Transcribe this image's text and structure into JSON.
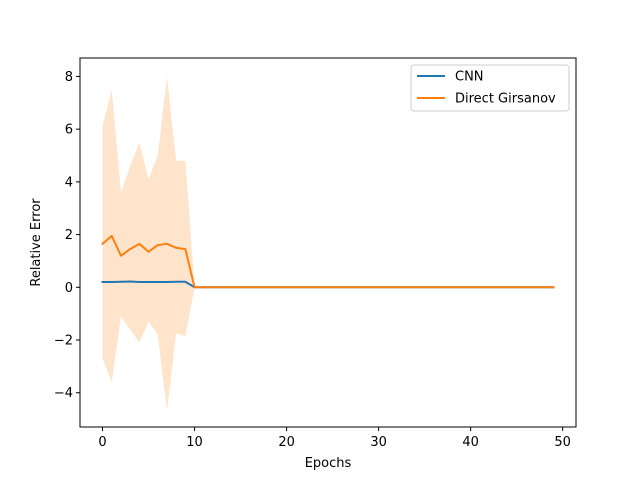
{
  "chart_data": {
    "type": "line",
    "title": "",
    "xlabel": "Epochs",
    "ylabel": "Relative Error",
    "xlim": [
      -2.45,
      51.45
    ],
    "ylim": [
      -5.3,
      8.7
    ],
    "xticks": [
      0,
      10,
      20,
      30,
      40,
      50
    ],
    "yticks": [
      -4,
      -2,
      0,
      2,
      4,
      6,
      8
    ],
    "grid": false,
    "legend_position": "upper right",
    "series": [
      {
        "name": "CNN",
        "color": "#1f77b4",
        "x": [
          0,
          1,
          2,
          3,
          4,
          5,
          6,
          7,
          8,
          9,
          10,
          11,
          12,
          13,
          14,
          15,
          16,
          17,
          18,
          19,
          20,
          21,
          22,
          23,
          24,
          25,
          26,
          27,
          28,
          29,
          30,
          31,
          32,
          33,
          34,
          35,
          36,
          37,
          38,
          39,
          40,
          41,
          42,
          43,
          44,
          45,
          46,
          47,
          48,
          49
        ],
        "y": [
          0.2,
          0.2,
          0.21,
          0.22,
          0.2,
          0.2,
          0.2,
          0.2,
          0.21,
          0.21,
          0,
          0,
          0,
          0,
          0,
          0,
          0,
          0,
          0,
          0,
          0,
          0,
          0,
          0,
          0,
          0,
          0,
          0,
          0,
          0,
          0,
          0,
          0,
          0,
          0,
          0,
          0,
          0,
          0,
          0,
          0,
          0,
          0,
          0,
          0,
          0,
          0,
          0,
          0,
          0
        ]
      },
      {
        "name": "Direct Girsanov",
        "color": "#ff7f0e",
        "x": [
          0,
          1,
          2,
          3,
          4,
          5,
          6,
          7,
          8,
          9,
          10,
          11,
          12,
          13,
          14,
          15,
          16,
          17,
          18,
          19,
          20,
          21,
          22,
          23,
          24,
          25,
          26,
          27,
          28,
          29,
          30,
          31,
          32,
          33,
          34,
          35,
          36,
          37,
          38,
          39,
          40,
          41,
          42,
          43,
          44,
          45,
          46,
          47,
          48,
          49
        ],
        "y": [
          1.65,
          1.95,
          1.2,
          1.45,
          1.65,
          1.35,
          1.6,
          1.65,
          1.5,
          1.45,
          0,
          0,
          0,
          0,
          0,
          0,
          0,
          0,
          0,
          0,
          0,
          0,
          0,
          0,
          0,
          0,
          0,
          0,
          0,
          0,
          0,
          0,
          0,
          0,
          0,
          0,
          0,
          0,
          0,
          0,
          0,
          0,
          0,
          0,
          0,
          0,
          0,
          0,
          0,
          0
        ],
        "band_upper": [
          6.1,
          7.5,
          3.6,
          4.6,
          5.5,
          4.1,
          5.0,
          8.0,
          4.8,
          4.8,
          0,
          0,
          0,
          0,
          0,
          0,
          0,
          0,
          0,
          0,
          0,
          0,
          0,
          0,
          0,
          0,
          0,
          0,
          0,
          0,
          0,
          0,
          0,
          0,
          0,
          0,
          0,
          0,
          0,
          0,
          0,
          0,
          0,
          0,
          0,
          0,
          0,
          0,
          0,
          0
        ],
        "band_lower": [
          -2.7,
          -3.6,
          -1.1,
          -1.6,
          -2.1,
          -1.3,
          -1.8,
          -4.7,
          -1.75,
          -1.85,
          0,
          0,
          0,
          0,
          0,
          0,
          0,
          0,
          0,
          0,
          0,
          0,
          0,
          0,
          0,
          0,
          0,
          0,
          0,
          0,
          0,
          0,
          0,
          0,
          0,
          0,
          0,
          0,
          0,
          0,
          0,
          0,
          0,
          0,
          0,
          0,
          0,
          0,
          0,
          0
        ],
        "band_color": "#ffe4cc"
      }
    ]
  }
}
